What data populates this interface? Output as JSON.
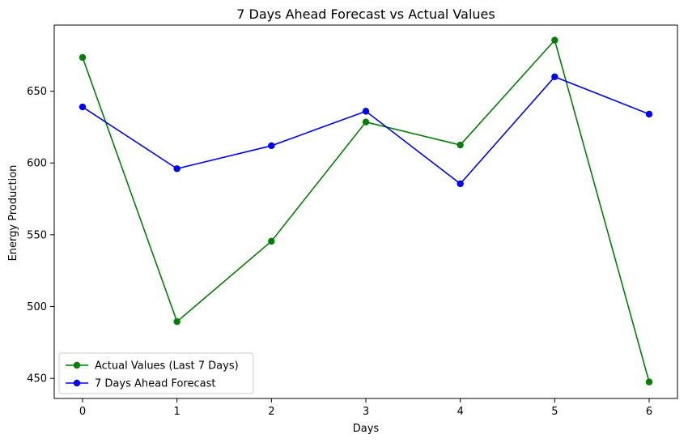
{
  "chart_data": {
    "type": "line",
    "title": "7 Days Ahead Forecast vs Actual Values",
    "xlabel": "Days",
    "ylabel": "Energy Production",
    "x": [
      0,
      1,
      2,
      3,
      4,
      5,
      6
    ],
    "xlim": [
      -0.3,
      6.3
    ],
    "ylim": [
      436,
      696
    ],
    "yticks": [
      450,
      500,
      550,
      600,
      650
    ],
    "grid": false,
    "legend_position": "lower-left",
    "series": [
      {
        "name": "Actual Values (Last 7 Days)",
        "color": "#008000",
        "marker": "circle",
        "values": [
          673.5,
          489.5,
          545.5,
          628.5,
          612.5,
          685.5,
          447.5
        ]
      },
      {
        "name": "7 Days Ahead Forecast",
        "color": "#0000ff",
        "marker": "circle",
        "values": [
          639,
          596,
          612,
          636,
          585.5,
          660,
          634
        ]
      }
    ]
  }
}
